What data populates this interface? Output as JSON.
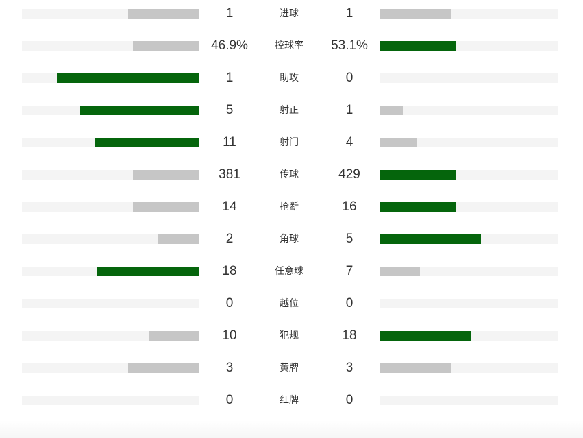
{
  "colors": {
    "leader": "#05650c",
    "trailer": "#c6c6c6",
    "track": "#f4f4f4",
    "text": "#333333"
  },
  "stats": [
    {
      "label": "进球",
      "home": "1",
      "away": "1",
      "home_share": 0.4,
      "away_share": 0.4,
      "leader": "none"
    },
    {
      "label": "控球率",
      "home": "46.9%",
      "away": "53.1%",
      "home_share": 0.375,
      "away_share": 0.425,
      "leader": "away"
    },
    {
      "label": "助攻",
      "home": "1",
      "away": "0",
      "home_share": 0.805,
      "away_share": 0.0,
      "leader": "home"
    },
    {
      "label": "射正",
      "home": "5",
      "away": "1",
      "home_share": 0.67,
      "away_share": 0.13,
      "leader": "home"
    },
    {
      "label": "射门",
      "home": "11",
      "away": "4",
      "home_share": 0.59,
      "away_share": 0.21,
      "leader": "home"
    },
    {
      "label": "传球",
      "home": "381",
      "away": "429",
      "home_share": 0.375,
      "away_share": 0.425,
      "leader": "away"
    },
    {
      "label": "抢断",
      "home": "14",
      "away": "16",
      "home_share": 0.375,
      "away_share": 0.43,
      "leader": "away"
    },
    {
      "label": "角球",
      "home": "2",
      "away": "5",
      "home_share": 0.23,
      "away_share": 0.57,
      "leader": "away"
    },
    {
      "label": "任意球",
      "home": "18",
      "away": "7",
      "home_share": 0.575,
      "away_share": 0.225,
      "leader": "home"
    },
    {
      "label": "越位",
      "home": "0",
      "away": "0",
      "home_share": 0.0,
      "away_share": 0.0,
      "leader": "none"
    },
    {
      "label": "犯规",
      "home": "10",
      "away": "18",
      "home_share": 0.285,
      "away_share": 0.515,
      "leader": "away"
    },
    {
      "label": "黄牌",
      "home": "3",
      "away": "3",
      "home_share": 0.4,
      "away_share": 0.4,
      "leader": "none"
    },
    {
      "label": "红牌",
      "home": "0",
      "away": "0",
      "home_share": 0.0,
      "away_share": 0.0,
      "leader": "none"
    }
  ]
}
